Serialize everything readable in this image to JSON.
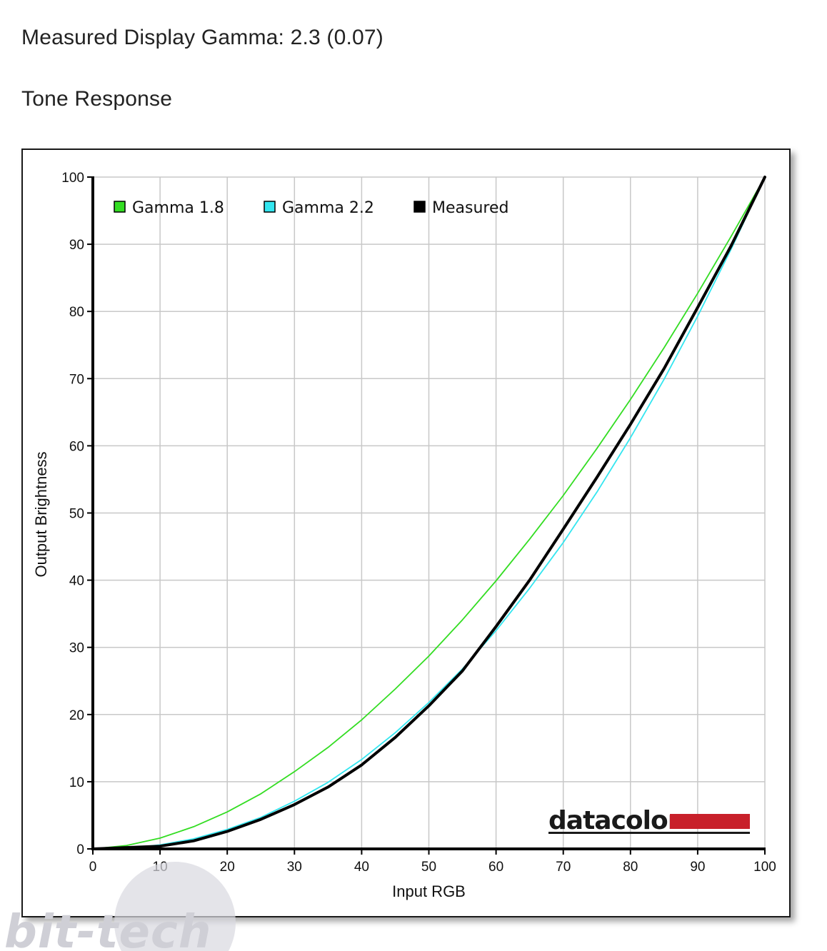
{
  "header": {
    "gamma_title": "Measured Display Gamma: 2.3 (0.07)",
    "section_title": "Tone Response"
  },
  "branding": {
    "logo": "datacolor",
    "logo_bar_color": "#c8202a",
    "watermark": "bit-tech"
  },
  "chart_data": {
    "type": "line",
    "xlabel": "Input RGB",
    "ylabel": "Output Brightness",
    "xlim": [
      0,
      100
    ],
    "ylim": [
      0,
      100
    ],
    "xticks": [
      0,
      10,
      20,
      30,
      40,
      50,
      60,
      70,
      80,
      90,
      100
    ],
    "yticks": [
      0,
      10,
      20,
      30,
      40,
      50,
      60,
      70,
      80,
      90,
      100
    ],
    "grid": true,
    "legend_position": "top-left",
    "series": [
      {
        "name": "Gamma 1.8",
        "color": "#33dd22",
        "x": [
          0,
          5,
          10,
          15,
          20,
          25,
          30,
          35,
          40,
          45,
          50,
          55,
          60,
          65,
          70,
          75,
          80,
          85,
          90,
          95,
          100
        ],
        "y": [
          0,
          0.5,
          1.6,
          3.3,
          5.5,
          8.2,
          11.5,
          15.1,
          19.2,
          23.8,
          28.7,
          34.1,
          39.9,
          46.1,
          52.6,
          59.6,
          66.9,
          74.6,
          82.7,
          91.2,
          100
        ]
      },
      {
        "name": "Gamma 2.2",
        "color": "#33e6f0",
        "x": [
          0,
          5,
          10,
          15,
          20,
          25,
          30,
          35,
          40,
          45,
          50,
          55,
          60,
          65,
          70,
          75,
          80,
          85,
          90,
          95,
          100
        ],
        "y": [
          0,
          0.1,
          0.6,
          1.5,
          2.9,
          4.7,
          7.1,
          9.9,
          13.3,
          17.3,
          21.8,
          26.8,
          32.5,
          38.8,
          45.6,
          53.1,
          61.2,
          69.9,
          79.3,
          89.3,
          100
        ]
      },
      {
        "name": "Measured",
        "color": "#000000",
        "x": [
          0,
          5,
          10,
          15,
          20,
          25,
          30,
          35,
          40,
          45,
          50,
          55,
          60,
          65,
          70,
          75,
          80,
          85,
          90,
          95,
          100
        ],
        "y": [
          0,
          0.2,
          0.4,
          1.2,
          2.6,
          4.4,
          6.6,
          9.2,
          12.5,
          16.6,
          21.3,
          26.5,
          33.1,
          40.0,
          47.6,
          55.3,
          63.2,
          71.5,
          80.6,
          89.8,
          100
        ]
      }
    ]
  }
}
